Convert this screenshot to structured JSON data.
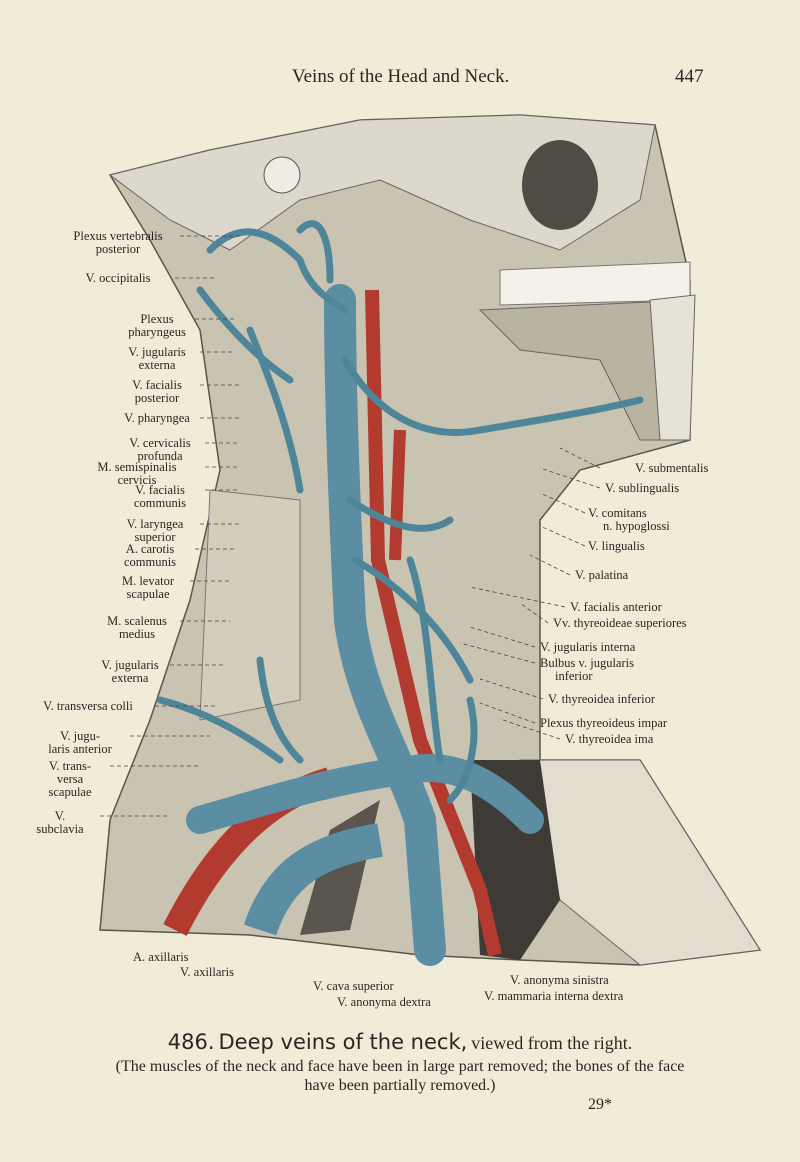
{
  "header": {
    "title": "Veins of the Head and Neck.",
    "page_number": "447"
  },
  "labels": {
    "left": [
      {
        "lines": [
          "Plexus vertebralis",
          "posterior"
        ]
      },
      {
        "lines": [
          "V. occipitalis"
        ]
      },
      {
        "lines": [
          "Plexus",
          "pharyngeus"
        ]
      },
      {
        "lines": [
          "V. jugularis",
          "externa"
        ]
      },
      {
        "lines": [
          "V. facialis",
          "posterior"
        ]
      },
      {
        "lines": [
          "V. pharyngea"
        ]
      },
      {
        "lines": [
          "V. cervicalis",
          "profunda"
        ]
      },
      {
        "lines": [
          "M. semispinalis",
          "cervicis"
        ]
      },
      {
        "lines": [
          "V. facialis",
          "communis"
        ]
      },
      {
        "lines": [
          "V. laryngea",
          "superior"
        ]
      },
      {
        "lines": [
          "A. carotis",
          "communis"
        ]
      },
      {
        "lines": [
          "M. levator",
          "scapulae"
        ]
      },
      {
        "lines": [
          "M. scalenus",
          "medius"
        ]
      },
      {
        "lines": [
          "V. jugularis",
          "externa"
        ]
      },
      {
        "lines": [
          "V. transversa colli"
        ]
      },
      {
        "lines": [
          "V. jugu-",
          "laris anterior"
        ]
      },
      {
        "lines": [
          "V. trans-",
          "versa",
          "scapulae"
        ]
      },
      {
        "lines": [
          "V.",
          "subclavia"
        ]
      }
    ],
    "right": [
      {
        "lines": [
          "V. submentalis"
        ]
      },
      {
        "lines": [
          "V. sublingualis"
        ]
      },
      {
        "lines": [
          "V. comitans",
          "n. hypoglossi"
        ]
      },
      {
        "lines": [
          "V. lingualis"
        ]
      },
      {
        "lines": [
          "V. palatina"
        ]
      },
      {
        "lines": [
          "V. facialis anterior"
        ]
      },
      {
        "lines": [
          "Vv. thyreoideae superiores"
        ]
      },
      {
        "lines": [
          "V. jugularis interna"
        ]
      },
      {
        "lines": [
          "Bulbus v. jugularis",
          "inferior"
        ]
      },
      {
        "lines": [
          "V. thyreoidea inferior"
        ]
      },
      {
        "lines": [
          "Plexus thyreoideus impar"
        ]
      },
      {
        "lines": [
          "V. thyreoidea ima"
        ]
      }
    ],
    "bottom": [
      {
        "lines": [
          "A. axillaris"
        ]
      },
      {
        "lines": [
          "V. axillaris"
        ]
      },
      {
        "lines": [
          "V. cava superior"
        ]
      },
      {
        "lines": [
          "V. anonyma dextra"
        ]
      },
      {
        "lines": [
          "V. anonyma sinistra"
        ]
      },
      {
        "lines": [
          "V. mammaria interna dextra"
        ]
      }
    ]
  },
  "caption": {
    "number": "486.",
    "title": "Deep veins of the neck,",
    "view": "viewed from the right.",
    "note": [
      "(The muscles of the neck and face have been in large part removed; the bones of the face",
      "have been partially removed.)"
    ]
  },
  "signature": "29*"
}
